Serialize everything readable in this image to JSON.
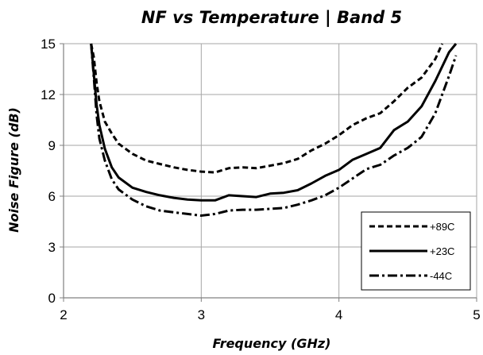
{
  "chart_data": {
    "type": "line",
    "title": "NF vs Temperature | Band 5",
    "xlabel": "Frequency (GHz)",
    "ylabel": "Noise Figure (dB)",
    "xlim": [
      2,
      5
    ],
    "ylim": [
      0,
      15
    ],
    "xticks": [
      2,
      3,
      4,
      5
    ],
    "yticks": [
      0,
      3,
      6,
      9,
      12,
      15
    ],
    "grid": true,
    "legend_position": "bottom-right",
    "series": [
      {
        "name": "+89C",
        "color": "#000000",
        "dash": "dashed",
        "x": [
          2.2,
          2.22,
          2.24,
          2.26,
          2.3,
          2.35,
          2.4,
          2.5,
          2.6,
          2.7,
          2.8,
          2.9,
          3.0,
          3.1,
          3.2,
          3.3,
          3.4,
          3.5,
          3.6,
          3.7,
          3.8,
          3.9,
          4.0,
          4.1,
          4.2,
          4.3,
          4.4,
          4.5,
          4.6,
          4.7,
          4.75
        ],
        "y": [
          15.0,
          14.2,
          12.7,
          11.6,
          10.4,
          9.7,
          9.1,
          8.5,
          8.1,
          7.9,
          7.7,
          7.55,
          7.45,
          7.4,
          7.65,
          7.7,
          7.65,
          7.8,
          7.95,
          8.2,
          8.7,
          9.1,
          9.6,
          10.2,
          10.6,
          10.9,
          11.6,
          12.4,
          13.0,
          14.1,
          15.0
        ]
      },
      {
        "name": "+23C",
        "color": "#000000",
        "dash": "solid",
        "x": [
          2.2,
          2.22,
          2.24,
          2.26,
          2.3,
          2.35,
          2.4,
          2.5,
          2.6,
          2.7,
          2.8,
          2.9,
          3.0,
          3.1,
          3.2,
          3.3,
          3.4,
          3.5,
          3.6,
          3.7,
          3.8,
          3.9,
          4.0,
          4.1,
          4.2,
          4.3,
          4.4,
          4.5,
          4.6,
          4.7,
          4.8,
          4.85
        ],
        "y": [
          15.0,
          13.2,
          11.4,
          10.2,
          8.8,
          7.7,
          7.1,
          6.5,
          6.25,
          6.05,
          5.9,
          5.8,
          5.75,
          5.75,
          6.05,
          6.0,
          5.95,
          6.15,
          6.2,
          6.35,
          6.75,
          7.2,
          7.55,
          8.15,
          8.5,
          8.85,
          9.9,
          10.4,
          11.3,
          12.8,
          14.5,
          15.0
        ]
      },
      {
        "name": "-44C",
        "color": "#000000",
        "dash": "dash-dot",
        "x": [
          2.2,
          2.22,
          2.24,
          2.26,
          2.3,
          2.35,
          2.4,
          2.5,
          2.6,
          2.7,
          2.8,
          2.9,
          3.0,
          3.1,
          3.2,
          3.3,
          3.4,
          3.5,
          3.6,
          3.7,
          3.8,
          3.9,
          4.0,
          4.1,
          4.2,
          4.3,
          4.4,
          4.5,
          4.6,
          4.7,
          4.8,
          4.85
        ],
        "y": [
          15.0,
          13.0,
          10.8,
          9.4,
          8.1,
          7.0,
          6.4,
          5.8,
          5.4,
          5.15,
          5.05,
          4.95,
          4.85,
          4.95,
          5.15,
          5.2,
          5.2,
          5.25,
          5.3,
          5.5,
          5.75,
          6.05,
          6.5,
          7.05,
          7.6,
          7.85,
          8.4,
          8.85,
          9.5,
          10.9,
          13.1,
          14.3
        ]
      }
    ]
  }
}
